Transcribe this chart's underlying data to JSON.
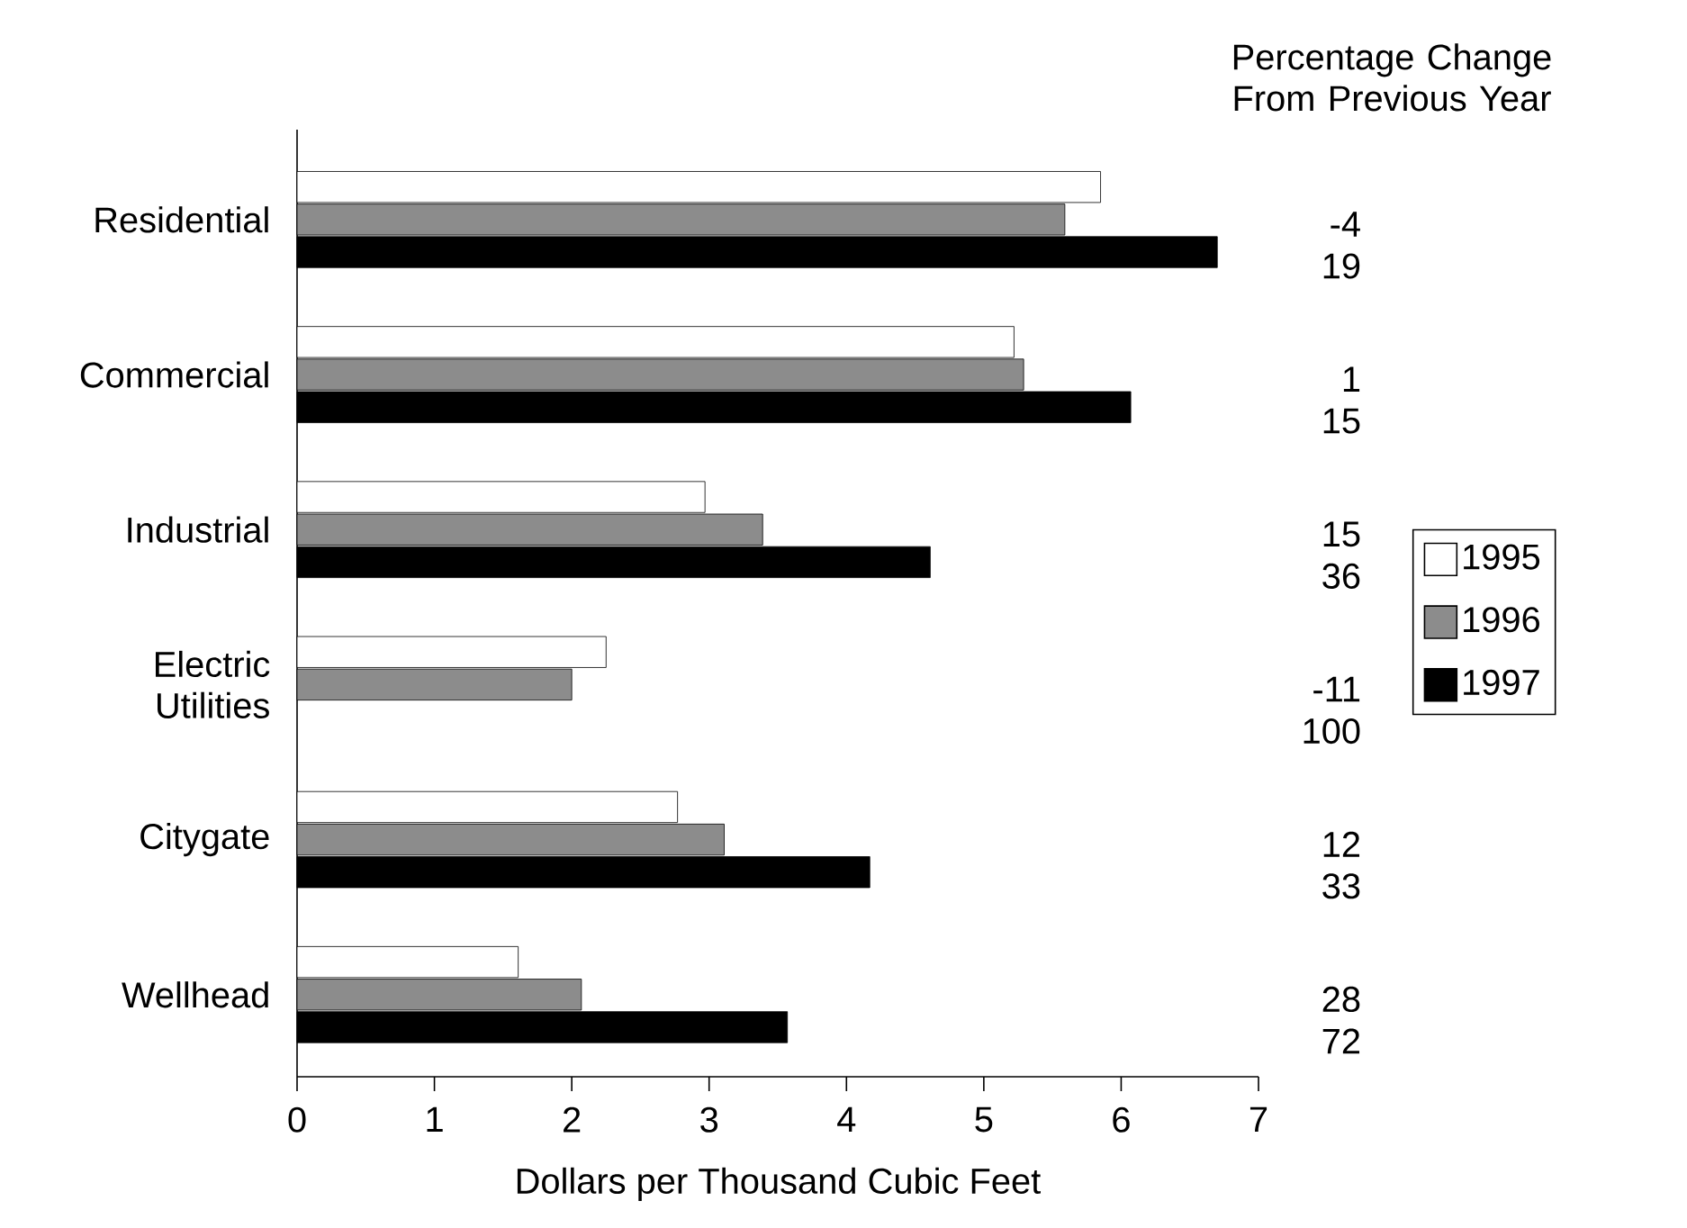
{
  "chart_data": {
    "type": "bar",
    "orientation": "horizontal",
    "xlabel": "Dollars per Thousand Cubic Feet",
    "categories": [
      "Residential",
      "Commercial",
      "Industrial",
      "Electric Utilities",
      "Citygate",
      "Wellhead"
    ],
    "series": [
      {
        "name": "1995",
        "color": "#ffffff",
        "values": [
          5.85,
          5.22,
          2.97,
          2.25,
          2.77,
          1.61
        ]
      },
      {
        "name": "1996",
        "color": "#8c8c8c",
        "values": [
          5.59,
          5.29,
          3.39,
          2.0,
          3.11,
          2.07
        ]
      },
      {
        "name": "1997",
        "color": "#000000",
        "values": [
          6.7,
          6.07,
          4.61,
          null,
          4.17,
          3.57
        ]
      }
    ],
    "xlim": [
      0,
      7
    ],
    "xticks": [
      0,
      1,
      2,
      3,
      4,
      5,
      6,
      7
    ],
    "legend": "right",
    "annotations": [
      "Percentage Change From Previous Year",
      "-4",
      "19",
      "1",
      "15",
      "15",
      "36",
      "-11",
      "100",
      "12",
      "33",
      "28",
      "72"
    ]
  }
}
